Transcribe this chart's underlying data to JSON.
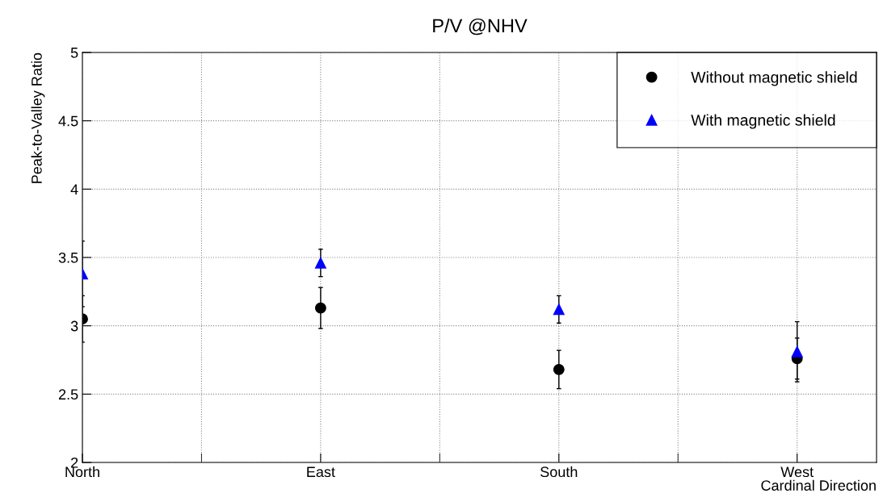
{
  "chart_data": {
    "type": "scatter",
    "title": "P/V @NHV",
    "xlabel": "Cardinal Direction",
    "ylabel": "Peak-to-Valley Ratio",
    "categories": [
      "North",
      "East",
      "South",
      "West"
    ],
    "ylim": [
      2,
      5
    ],
    "yticks": [
      2,
      2.5,
      3,
      3.5,
      4,
      4.5,
      5
    ],
    "series": [
      {
        "name": "Without magnetic shield",
        "color": "#000000",
        "marker": "circle",
        "values": [
          3.05,
          3.13,
          2.68,
          2.76
        ],
        "errors": [
          0.17,
          0.15,
          0.14,
          0.15
        ]
      },
      {
        "name": "With magnetic shield",
        "color": "#0000ff",
        "marker": "triangle",
        "values": [
          3.38,
          3.46,
          3.12,
          2.81
        ],
        "errors": [
          0.24,
          0.1,
          0.1,
          0.22
        ]
      }
    ],
    "grid": true,
    "legend": "top right"
  }
}
